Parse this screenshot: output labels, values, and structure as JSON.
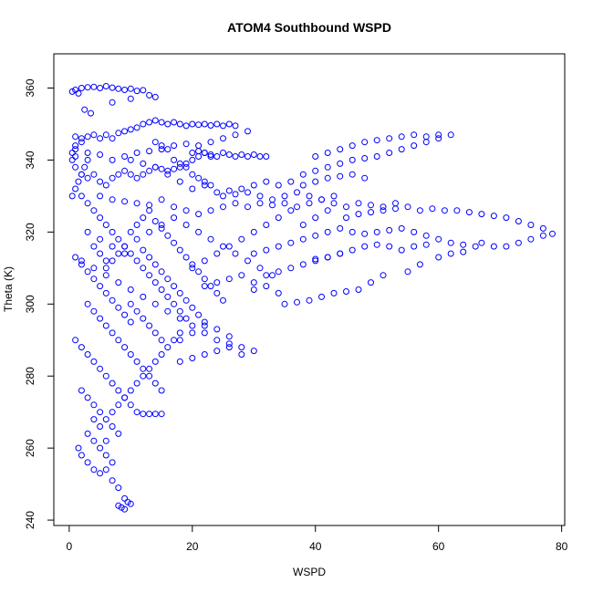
{
  "chart_data": {
    "type": "scatter",
    "title": "ATOM4 Southbound WSPD",
    "xlabel": "WSPD",
    "ylabel": "Theta (K)",
    "xlim": [
      -2.5,
      80.5
    ],
    "ylim": [
      238.5,
      369.5
    ],
    "x_ticks": [
      0,
      20,
      40,
      60,
      80
    ],
    "y_ticks": [
      240,
      260,
      280,
      300,
      320,
      340,
      360
    ],
    "marker": "open-circle",
    "color": "#0000ff",
    "grid": false,
    "legend": "none",
    "points": [
      [
        0.5,
        359
      ],
      [
        1,
        359.5
      ],
      [
        2,
        360
      ],
      [
        3,
        360.2
      ],
      [
        4,
        360.3
      ],
      [
        5,
        360
      ],
      [
        6,
        360.5
      ],
      [
        7,
        360.1
      ],
      [
        8,
        359.8
      ],
      [
        9,
        359.5
      ],
      [
        10,
        359.8
      ],
      [
        11,
        359.2
      ],
      [
        12,
        359.4
      ],
      [
        13,
        358
      ],
      [
        14,
        357.5
      ],
      [
        1.5,
        358.5
      ],
      [
        2.5,
        354
      ],
      [
        3.5,
        353
      ],
      [
        7,
        356
      ],
      [
        10,
        357
      ],
      [
        1,
        346.5
      ],
      [
        2,
        346
      ],
      [
        3,
        346.5
      ],
      [
        4,
        347
      ],
      [
        5,
        346
      ],
      [
        6,
        347
      ],
      [
        7,
        346
      ],
      [
        8,
        347.5
      ],
      [
        9,
        348
      ],
      [
        10,
        348.5
      ],
      [
        11,
        349
      ],
      [
        12,
        350
      ],
      [
        13,
        350.5
      ],
      [
        14,
        351
      ],
      [
        15,
        350.5
      ],
      [
        16,
        350
      ],
      [
        17,
        350.5
      ],
      [
        18,
        350
      ],
      [
        19,
        349.5
      ],
      [
        20,
        350
      ],
      [
        21,
        349.8
      ],
      [
        22,
        350
      ],
      [
        23,
        349.6
      ],
      [
        24,
        350
      ],
      [
        25,
        349.5
      ],
      [
        26,
        350
      ],
      [
        27,
        349.5
      ],
      [
        1,
        343
      ],
      [
        3,
        342
      ],
      [
        5,
        341.5
      ],
      [
        7,
        340
      ],
      [
        9,
        341
      ],
      [
        11,
        342
      ],
      [
        13,
        342.5
      ],
      [
        15,
        343
      ],
      [
        17,
        344
      ],
      [
        19,
        344.5
      ],
      [
        21,
        344
      ],
      [
        23,
        345
      ],
      [
        25,
        346
      ],
      [
        27,
        347
      ],
      [
        29,
        348
      ],
      [
        0.5,
        340
      ],
      [
        1,
        338
      ],
      [
        2,
        336
      ],
      [
        3,
        335
      ],
      [
        4,
        336
      ],
      [
        5,
        334
      ],
      [
        6,
        333
      ],
      [
        7,
        335
      ],
      [
        8,
        336
      ],
      [
        9,
        337
      ],
      [
        10,
        336
      ],
      [
        11,
        335
      ],
      [
        12,
        336
      ],
      [
        13,
        337
      ],
      [
        14,
        338
      ],
      [
        15,
        337.5
      ],
      [
        16,
        337
      ],
      [
        17,
        337.5
      ],
      [
        18,
        338
      ],
      [
        19,
        339
      ],
      [
        20,
        340
      ],
      [
        21,
        341
      ],
      [
        22,
        342
      ],
      [
        23,
        341.5
      ],
      [
        24,
        341
      ],
      [
        25,
        342
      ],
      [
        26,
        341.5
      ],
      [
        27,
        341
      ],
      [
        28,
        341.5
      ],
      [
        29,
        341
      ],
      [
        30,
        341.5
      ],
      [
        31,
        341
      ],
      [
        32,
        341
      ],
      [
        20,
        342
      ],
      [
        21,
        342.5
      ],
      [
        22,
        342
      ],
      [
        23,
        341
      ],
      [
        10,
        340
      ],
      [
        12,
        339
      ],
      [
        14,
        338
      ],
      [
        16,
        336
      ],
      [
        18,
        334
      ],
      [
        20,
        332
      ],
      [
        22,
        333
      ],
      [
        24,
        331
      ],
      [
        26,
        331.5
      ],
      [
        28,
        332
      ],
      [
        30,
        333
      ],
      [
        32,
        334
      ],
      [
        34,
        333
      ],
      [
        36,
        334
      ],
      [
        38,
        333
      ],
      [
        40,
        334
      ],
      [
        42,
        335
      ],
      [
        44,
        335.5
      ],
      [
        46,
        336
      ],
      [
        48,
        335
      ],
      [
        5,
        330
      ],
      [
        7,
        329
      ],
      [
        9,
        328.5
      ],
      [
        11,
        328
      ],
      [
        13,
        327.5
      ],
      [
        15,
        329
      ],
      [
        17,
        327
      ],
      [
        19,
        326
      ],
      [
        21,
        325
      ],
      [
        23,
        326
      ],
      [
        25,
        327
      ],
      [
        27,
        328
      ],
      [
        29,
        327
      ],
      [
        31,
        328
      ],
      [
        33,
        327.5
      ],
      [
        35,
        328
      ],
      [
        37,
        327
      ],
      [
        39,
        328
      ],
      [
        41,
        329
      ],
      [
        43,
        328
      ],
      [
        45,
        327
      ],
      [
        47,
        328
      ],
      [
        49,
        327.5
      ],
      [
        51,
        327
      ],
      [
        53,
        328
      ],
      [
        38,
        336
      ],
      [
        40,
        337
      ],
      [
        42,
        338
      ],
      [
        44,
        339
      ],
      [
        46,
        340
      ],
      [
        48,
        340.5
      ],
      [
        50,
        341
      ],
      [
        52,
        342
      ],
      [
        54,
        343
      ],
      [
        56,
        344
      ],
      [
        58,
        345
      ],
      [
        60,
        346
      ],
      [
        62,
        347
      ],
      [
        40,
        341
      ],
      [
        42,
        342
      ],
      [
        44,
        343
      ],
      [
        46,
        344
      ],
      [
        48,
        345
      ],
      [
        50,
        345.5
      ],
      [
        52,
        346
      ],
      [
        54,
        346.5
      ],
      [
        56,
        347
      ],
      [
        58,
        346.5
      ],
      [
        60,
        347
      ],
      [
        45,
        324
      ],
      [
        47,
        325
      ],
      [
        49,
        325.5
      ],
      [
        51,
        326
      ],
      [
        53,
        326.5
      ],
      [
        55,
        327
      ],
      [
        57,
        326
      ],
      [
        59,
        326.5
      ],
      [
        61,
        326
      ],
      [
        63,
        326
      ],
      [
        65,
        325.5
      ],
      [
        67,
        325
      ],
      [
        69,
        324.5
      ],
      [
        71,
        324
      ],
      [
        73,
        323
      ],
      [
        75,
        322
      ],
      [
        77,
        321
      ],
      [
        78.5,
        319.5
      ],
      [
        77,
        319
      ],
      [
        75,
        318
      ],
      [
        73,
        317
      ],
      [
        71,
        316
      ],
      [
        69,
        316
      ],
      [
        67,
        317
      ],
      [
        30,
        314
      ],
      [
        32,
        315
      ],
      [
        34,
        316
      ],
      [
        36,
        317
      ],
      [
        38,
        318
      ],
      [
        40,
        319
      ],
      [
        42,
        320
      ],
      [
        44,
        321
      ],
      [
        46,
        320
      ],
      [
        48,
        319.5
      ],
      [
        50,
        320
      ],
      [
        52,
        320.5
      ],
      [
        54,
        321
      ],
      [
        56,
        320
      ],
      [
        58,
        319
      ],
      [
        60,
        318
      ],
      [
        62,
        317
      ],
      [
        64,
        316.5
      ],
      [
        66,
        316
      ],
      [
        40,
        312
      ],
      [
        42,
        313
      ],
      [
        44,
        314
      ],
      [
        46,
        315
      ],
      [
        48,
        316
      ],
      [
        50,
        316.5
      ],
      [
        52,
        316
      ],
      [
        54,
        315
      ],
      [
        56,
        316
      ],
      [
        58,
        316.5
      ],
      [
        30,
        306
      ],
      [
        32,
        308
      ],
      [
        34,
        309
      ],
      [
        36,
        310
      ],
      [
        38,
        311
      ],
      [
        40,
        312.5
      ],
      [
        42,
        313
      ],
      [
        44,
        314
      ],
      [
        35,
        300
      ],
      [
        37,
        300.5
      ],
      [
        39,
        301
      ],
      [
        41,
        302
      ],
      [
        43,
        303
      ],
      [
        45,
        303.5
      ],
      [
        47,
        304
      ],
      [
        49,
        306
      ],
      [
        51,
        308
      ],
      [
        60,
        313
      ],
      [
        62,
        314
      ],
      [
        64,
        314.5
      ],
      [
        55,
        309
      ],
      [
        57,
        311
      ],
      [
        2,
        330
      ],
      [
        3,
        328
      ],
      [
        4,
        326
      ],
      [
        5,
        324
      ],
      [
        6,
        322
      ],
      [
        7,
        320
      ],
      [
        8,
        318
      ],
      [
        9,
        316
      ],
      [
        10,
        314
      ],
      [
        11,
        312
      ],
      [
        12,
        310
      ],
      [
        13,
        308
      ],
      [
        14,
        306
      ],
      [
        15,
        304
      ],
      [
        16,
        302
      ],
      [
        17,
        300
      ],
      [
        18,
        298
      ],
      [
        19,
        296
      ],
      [
        3,
        320
      ],
      [
        5,
        318
      ],
      [
        7,
        316
      ],
      [
        9,
        314
      ],
      [
        11,
        318
      ],
      [
        13,
        320
      ],
      [
        15,
        322
      ],
      [
        17,
        324
      ],
      [
        19,
        322
      ],
      [
        21,
        320
      ],
      [
        23,
        318
      ],
      [
        25,
        316
      ],
      [
        27,
        314
      ],
      [
        29,
        312
      ],
      [
        31,
        310
      ],
      [
        33,
        308
      ],
      [
        2,
        312
      ],
      [
        4,
        310
      ],
      [
        6,
        308
      ],
      [
        8,
        306
      ],
      [
        10,
        304
      ],
      [
        12,
        302
      ],
      [
        14,
        300
      ],
      [
        16,
        298
      ],
      [
        18,
        296
      ],
      [
        20,
        294
      ],
      [
        22,
        292
      ],
      [
        24,
        290
      ],
      [
        26,
        289
      ],
      [
        28,
        288
      ],
      [
        1,
        313
      ],
      [
        2,
        311
      ],
      [
        3,
        309
      ],
      [
        4,
        307
      ],
      [
        5,
        305
      ],
      [
        6,
        303
      ],
      [
        7,
        301
      ],
      [
        8,
        299
      ],
      [
        9,
        297
      ],
      [
        10,
        295
      ],
      [
        3,
        300
      ],
      [
        4,
        298
      ],
      [
        5,
        296
      ],
      [
        6,
        294
      ],
      [
        7,
        292
      ],
      [
        8,
        290
      ],
      [
        9,
        288
      ],
      [
        10,
        286
      ],
      [
        11,
        284
      ],
      [
        12,
        282
      ],
      [
        13,
        280
      ],
      [
        14,
        278
      ],
      [
        15,
        276
      ],
      [
        20,
        310
      ],
      [
        22,
        312
      ],
      [
        24,
        314
      ],
      [
        26,
        316
      ],
      [
        28,
        318
      ],
      [
        30,
        320
      ],
      [
        32,
        322
      ],
      [
        34,
        324
      ],
      [
        36,
        326
      ],
      [
        38,
        322
      ],
      [
        40,
        324
      ],
      [
        42,
        326
      ],
      [
        22,
        305
      ],
      [
        24,
        306
      ],
      [
        26,
        307
      ],
      [
        28,
        308
      ],
      [
        30,
        304
      ],
      [
        32,
        305
      ],
      [
        34,
        303
      ],
      [
        18,
        284
      ],
      [
        20,
        285
      ],
      [
        22,
        286
      ],
      [
        24,
        287
      ],
      [
        26,
        288
      ],
      [
        28,
        286
      ],
      [
        30,
        287
      ],
      [
        18,
        290
      ],
      [
        20,
        292
      ],
      [
        22,
        294
      ],
      [
        24,
        293
      ],
      [
        26,
        291
      ],
      [
        1,
        290
      ],
      [
        2,
        288
      ],
      [
        3,
        286
      ],
      [
        4,
        284
      ],
      [
        5,
        282
      ],
      [
        6,
        280
      ],
      [
        7,
        278
      ],
      [
        8,
        276
      ],
      [
        9,
        274
      ],
      [
        10,
        272
      ],
      [
        11,
        270
      ],
      [
        12,
        269.5
      ],
      [
        13,
        269.5
      ],
      [
        14,
        269.5
      ],
      [
        15,
        269.5
      ],
      [
        2,
        276
      ],
      [
        3,
        274
      ],
      [
        4,
        272
      ],
      [
        5,
        270
      ],
      [
        6,
        268
      ],
      [
        7,
        266
      ],
      [
        8,
        264
      ],
      [
        3,
        264
      ],
      [
        4,
        262
      ],
      [
        5,
        260
      ],
      [
        6,
        258
      ],
      [
        7,
        256
      ],
      [
        4,
        254
      ],
      [
        5,
        253
      ],
      [
        6,
        254
      ],
      [
        3,
        256
      ],
      [
        2,
        258
      ],
      [
        1.5,
        260
      ],
      [
        8,
        244
      ],
      [
        9,
        243
      ],
      [
        10,
        244.5
      ],
      [
        9.5,
        245
      ],
      [
        8.5,
        243.5
      ],
      [
        9,
        246
      ],
      [
        8,
        249
      ],
      [
        7,
        251
      ],
      [
        6,
        262
      ],
      [
        5,
        266
      ],
      [
        4,
        268
      ],
      [
        7,
        270
      ],
      [
        8,
        272
      ],
      [
        9,
        274
      ],
      [
        10,
        276
      ],
      [
        11,
        278
      ],
      [
        12,
        280
      ],
      [
        13,
        282
      ],
      [
        14,
        284
      ],
      [
        15,
        286
      ],
      [
        16,
        288
      ],
      [
        17,
        290
      ],
      [
        18,
        292
      ],
      [
        10,
        320
      ],
      [
        11,
        322
      ],
      [
        12,
        324
      ],
      [
        13,
        326
      ],
      [
        14,
        323
      ],
      [
        15,
        321
      ],
      [
        16,
        319
      ],
      [
        17,
        317
      ],
      [
        18,
        315
      ],
      [
        19,
        313
      ],
      [
        20,
        311
      ],
      [
        21,
        309
      ],
      [
        22,
        307
      ],
      [
        23,
        305
      ],
      [
        24,
        303
      ],
      [
        25,
        301
      ],
      [
        12,
        315
      ],
      [
        13,
        313
      ],
      [
        14,
        311
      ],
      [
        15,
        309
      ],
      [
        16,
        307
      ],
      [
        17,
        305
      ],
      [
        18,
        303
      ],
      [
        19,
        301
      ],
      [
        20,
        299
      ],
      [
        21,
        297
      ],
      [
        22,
        295
      ],
      [
        25,
        330
      ],
      [
        27,
        330.5
      ],
      [
        29,
        331
      ],
      [
        31,
        330
      ],
      [
        33,
        329
      ],
      [
        35,
        330
      ],
      [
        37,
        331
      ],
      [
        39,
        330
      ],
      [
        41,
        329
      ],
      [
        43,
        330
      ],
      [
        10,
        300
      ],
      [
        11,
        298
      ],
      [
        12,
        296
      ],
      [
        13,
        294
      ],
      [
        14,
        292
      ],
      [
        15,
        290
      ],
      [
        6,
        310
      ],
      [
        7,
        312
      ],
      [
        8,
        314
      ],
      [
        9,
        316
      ],
      [
        4,
        316
      ],
      [
        5,
        314
      ],
      [
        6,
        312
      ],
      [
        0.5,
        330
      ],
      [
        1,
        332
      ],
      [
        1.5,
        334
      ],
      [
        2,
        336
      ],
      [
        2.5,
        338
      ],
      [
        3,
        340
      ],
      [
        1,
        341
      ],
      [
        0.5,
        342
      ],
      [
        1,
        344
      ],
      [
        2,
        345
      ],
      [
        14,
        345
      ],
      [
        15,
        344
      ],
      [
        16,
        343
      ],
      [
        17,
        340
      ],
      [
        18,
        339
      ],
      [
        19,
        338
      ],
      [
        20,
        336
      ],
      [
        21,
        335
      ],
      [
        22,
        334
      ],
      [
        23,
        333
      ]
    ]
  }
}
